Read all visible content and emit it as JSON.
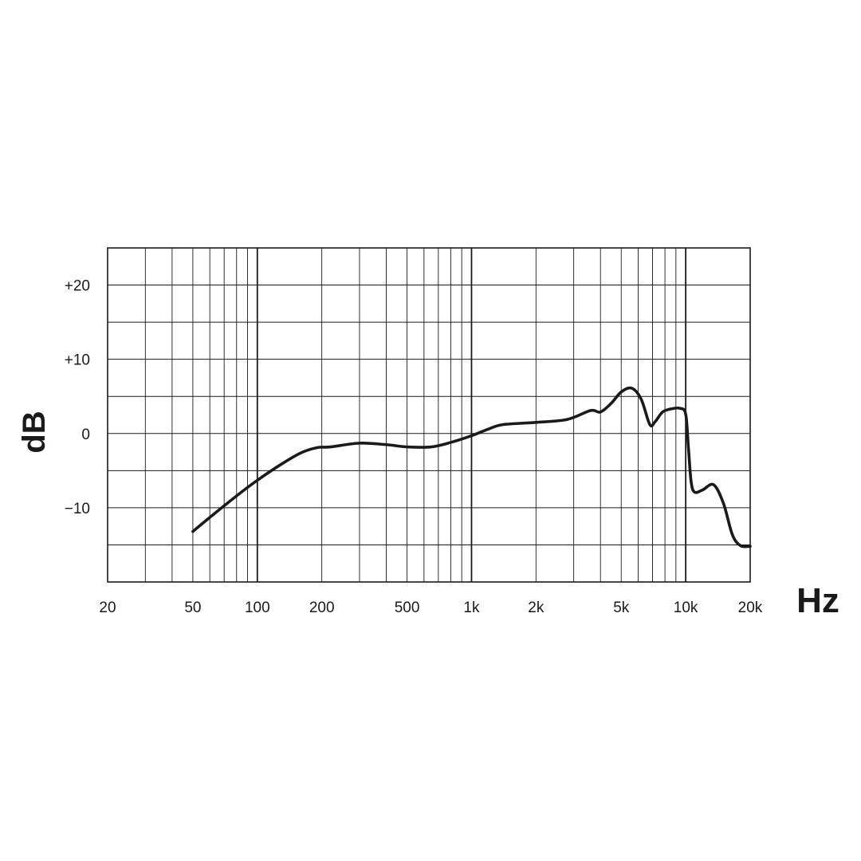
{
  "chart_data": {
    "type": "line",
    "title": "",
    "xlabel": "Hz",
    "ylabel": "dB",
    "x_scale": "log",
    "xlim": [
      20,
      20000
    ],
    "ylim": [
      -20,
      25
    ],
    "grid": true,
    "x_ticks": [
      {
        "value": 20,
        "label": "20"
      },
      {
        "value": 50,
        "label": "50"
      },
      {
        "value": 100,
        "label": "100"
      },
      {
        "value": 200,
        "label": "200"
      },
      {
        "value": 500,
        "label": "500"
      },
      {
        "value": 1000,
        "label": "1k"
      },
      {
        "value": 2000,
        "label": "2k"
      },
      {
        "value": 5000,
        "label": "5k"
      },
      {
        "value": 10000,
        "label": "10k"
      },
      {
        "value": 20000,
        "label": "20k"
      }
    ],
    "y_ticks": [
      {
        "value": 20,
        "label": "+20"
      },
      {
        "value": 10,
        "label": "+10"
      },
      {
        "value": 0,
        "label": "0"
      },
      {
        "value": -10,
        "label": "−10"
      }
    ],
    "series": [
      {
        "color": "#1a1a1a",
        "x": [
          50,
          60,
          80,
          100,
          130,
          160,
          190,
          220,
          300,
          400,
          500,
          650,
          800,
          1000,
          1200,
          1400,
          2000,
          2800,
          3600,
          4000,
          4500,
          5000,
          5600,
          6200,
          6800,
          7200,
          7800,
          8500,
          9400,
          10000,
          10300,
          10600,
          11000,
          12000,
          13500,
          15000,
          16500,
          18000,
          20000
        ],
        "y": [
          -13.2,
          -11.3,
          -8.4,
          -6.3,
          -4.1,
          -2.6,
          -1.9,
          -1.8,
          -1.3,
          -1.5,
          -1.8,
          -1.8,
          -1.2,
          -0.3,
          0.6,
          1.2,
          1.5,
          1.9,
          3.1,
          2.9,
          4.1,
          5.6,
          6.1,
          4.6,
          1.2,
          1.6,
          2.9,
          3.3,
          3.4,
          2.6,
          -2.0,
          -6.5,
          -7.9,
          -7.6,
          -6.9,
          -9.4,
          -13.6,
          -15.1,
          -15.2
        ]
      }
    ]
  }
}
